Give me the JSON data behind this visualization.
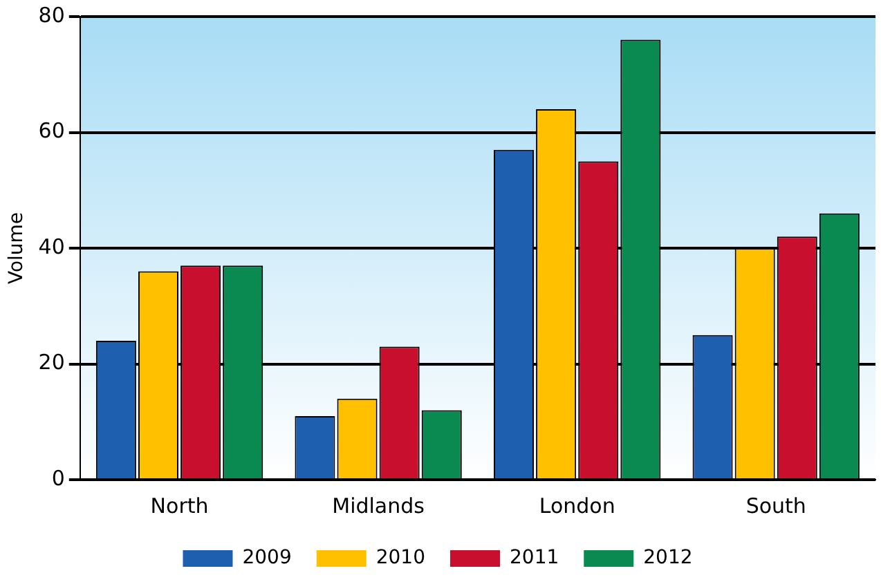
{
  "chart_data": {
    "type": "bar",
    "ylabel": "Volume",
    "categories": [
      "North",
      "Midlands",
      "London",
      "South"
    ],
    "series": [
      {
        "name": "2009",
        "color": "#1f5fb0",
        "values": [
          24,
          11,
          57,
          25
        ]
      },
      {
        "name": "2010",
        "color": "#ffc000",
        "values": [
          36,
          14,
          64,
          40
        ]
      },
      {
        "name": "2011",
        "color": "#c8102e",
        "values": [
          37,
          23,
          55,
          42
        ]
      },
      {
        "name": "2012",
        "color": "#0a8a50",
        "values": [
          37,
          12,
          76,
          46
        ]
      }
    ],
    "ylim": [
      0,
      80
    ],
    "yticks": [
      0,
      20,
      40,
      60,
      80
    ],
    "grid": "y",
    "legend": "bottom"
  }
}
